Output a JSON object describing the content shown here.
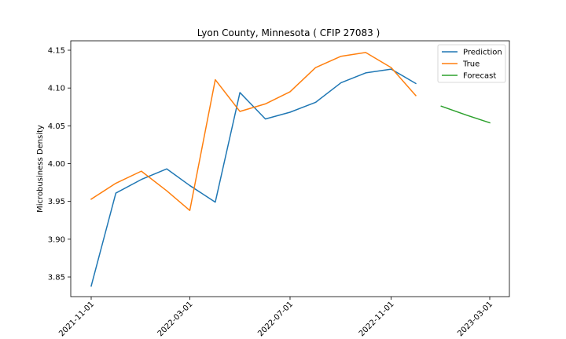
{
  "chart_data": {
    "type": "line",
    "title": "Lyon County, Minnesota ( CFIP 27083 )",
    "xlabel": "",
    "ylabel": "Microbusiness Density",
    "ylim": [
      3.825,
      4.16
    ],
    "xlim": [
      "2021-10-01",
      "2023-04-01"
    ],
    "y_ticks": [
      3.85,
      3.9,
      3.95,
      4.0,
      4.05,
      4.1,
      4.15
    ],
    "y_tick_labels": [
      "3.85",
      "3.90",
      "3.95",
      "4.00",
      "4.05",
      "4.10",
      "4.15"
    ],
    "x_ticks": [
      "2021-11-01",
      "2022-03-01",
      "2022-07-01",
      "2022-11-01",
      "2023-03-01"
    ],
    "legend_position": "top-right",
    "grid": false,
    "series": [
      {
        "name": "Prediction",
        "color": "#1f77b4",
        "x": [
          "2021-11-01",
          "2021-12-01",
          "2022-01-01",
          "2022-02-01",
          "2022-03-01",
          "2022-04-01",
          "2022-05-01",
          "2022-06-01",
          "2022-07-01",
          "2022-08-01",
          "2022-09-01",
          "2022-10-01",
          "2022-11-01",
          "2022-12-01"
        ],
        "values": [
          3.838,
          3.961,
          3.979,
          3.993,
          3.971,
          3.949,
          4.094,
          4.059,
          4.068,
          4.081,
          4.107,
          4.12,
          4.125,
          4.106
        ]
      },
      {
        "name": "True",
        "color": "#ff7f0e",
        "x": [
          "2021-11-01",
          "2021-12-01",
          "2022-01-01",
          "2022-02-01",
          "2022-03-01",
          "2022-04-01",
          "2022-05-01",
          "2022-06-01",
          "2022-07-01",
          "2022-08-01",
          "2022-09-01",
          "2022-10-01",
          "2022-11-01",
          "2022-12-01"
        ],
        "values": [
          3.953,
          3.974,
          3.99,
          3.964,
          3.938,
          4.111,
          4.069,
          4.079,
          4.095,
          4.127,
          4.142,
          4.147,
          4.127,
          4.09
        ]
      },
      {
        "name": "Forecast",
        "color": "#2ca02c",
        "x": [
          "2023-01-01",
          "2023-02-01",
          "2023-03-01"
        ],
        "values": [
          4.076,
          4.064,
          4.054
        ]
      }
    ]
  }
}
